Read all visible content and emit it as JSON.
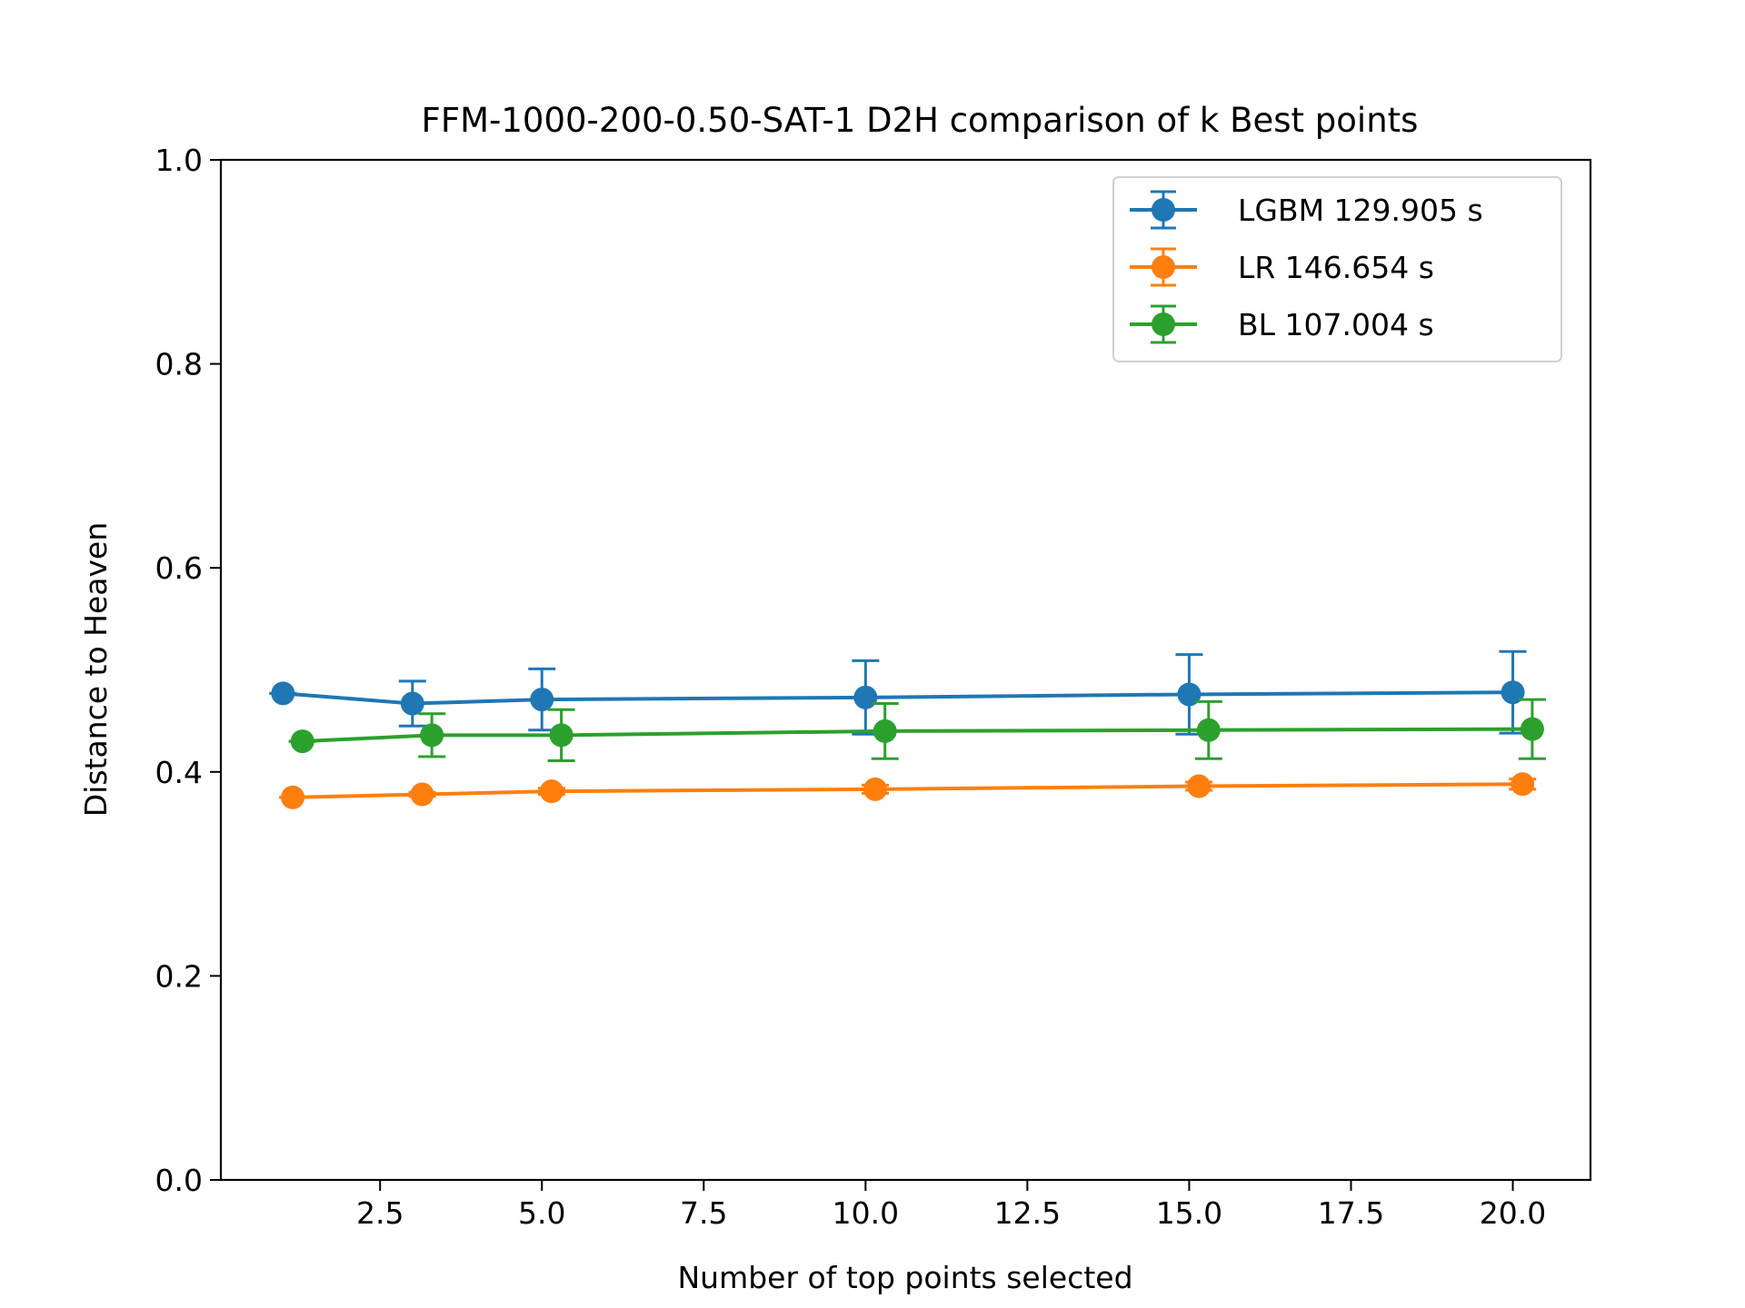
{
  "chart_data": {
    "type": "line",
    "title": "FFM-1000-200-0.50-SAT-1 D2H comparison of k Best points",
    "xlabel": "Number of top points selected",
    "ylabel": "Distance to Heaven",
    "xlim": [
      0.04,
      21.2
    ],
    "ylim": [
      0.0,
      1.0
    ],
    "xticks": [
      2.5,
      5.0,
      7.5,
      10.0,
      12.5,
      15.0,
      17.5,
      20.0
    ],
    "xtick_labels": [
      "2.5",
      "5.0",
      "7.5",
      "10.0",
      "12.5",
      "15.0",
      "17.5",
      "20.0"
    ],
    "yticks": [
      0.0,
      0.2,
      0.4,
      0.6,
      0.8,
      1.0
    ],
    "ytick_labels": [
      "0.0",
      "0.2",
      "0.4",
      "0.6",
      "0.8",
      "1.0"
    ],
    "legend_position": "top-right",
    "grid": false,
    "series": [
      {
        "name": "LGBM 129.905 s",
        "color": "#1f77b4",
        "x": [
          1.0,
          3.0,
          5.0,
          10.0,
          15.0,
          20.0
        ],
        "y": [
          0.477,
          0.467,
          0.471,
          0.473,
          0.476,
          0.478
        ],
        "yerr": [
          0.0,
          0.022,
          0.03,
          0.036,
          0.039,
          0.04
        ]
      },
      {
        "name": "LR 146.654 s",
        "color": "#ff7f0e",
        "x": [
          1.15,
          3.15,
          5.15,
          10.15,
          15.15,
          20.15
        ],
        "y": [
          0.375,
          0.378,
          0.381,
          0.383,
          0.386,
          0.388
        ],
        "yerr": [
          0.0,
          0.002,
          0.003,
          0.004,
          0.004,
          0.005
        ]
      },
      {
        "name": "BL 107.004 s",
        "color": "#2ca02c",
        "x": [
          1.3,
          3.3,
          5.3,
          10.3,
          15.3,
          20.3
        ],
        "y": [
          0.43,
          0.436,
          0.436,
          0.44,
          0.441,
          0.442
        ],
        "yerr": [
          0.0,
          0.021,
          0.025,
          0.027,
          0.028,
          0.029
        ]
      }
    ]
  }
}
